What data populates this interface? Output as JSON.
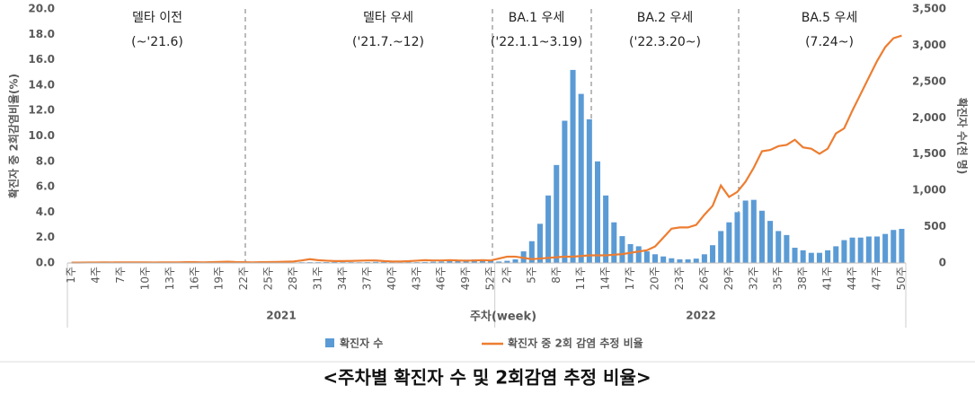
{
  "chart_data": {
    "type": "bar_line",
    "annotations": [
      {
        "text": "델타 이전",
        "sub": "(~'21.6)"
      },
      {
        "text": "델타 우세",
        "sub": "('21.7.~12)"
      },
      {
        "text": "BA.1 우세",
        "sub": "('22.1.1~3.19)"
      },
      {
        "text": "BA.2 우세",
        "sub": "('22.3.20~)"
      },
      {
        "text": "BA.5 우세",
        "sub": "(7.24~)"
      }
    ],
    "groups": [
      "2021",
      "2022"
    ],
    "xlabel": "주차(week)",
    "ylabel": "확진자 중 2회감염비율(%)",
    "y2label": "확진자 수(천 명)",
    "caption": "<주차별 확진자 수 및 2회감염 추정 비율>",
    "categories": [
      "1주",
      null,
      null,
      "4주",
      null,
      null,
      "7주",
      null,
      null,
      "10주",
      null,
      null,
      "13주",
      null,
      null,
      "16주",
      null,
      null,
      "19주",
      null,
      null,
      "22주",
      null,
      null,
      "25주",
      null,
      null,
      "28주",
      null,
      null,
      "31주",
      null,
      null,
      "34주",
      null,
      null,
      "37주",
      null,
      null,
      "40주",
      null,
      null,
      "43주",
      null,
      null,
      "46주",
      null,
      null,
      "49주",
      null,
      null,
      "52주",
      null,
      "2주",
      null,
      null,
      "5주",
      null,
      null,
      "8주",
      null,
      null,
      "11주",
      null,
      null,
      "14주",
      null,
      null,
      "17주",
      null,
      null,
      "20주",
      null,
      null,
      "23주",
      null,
      null,
      "26주",
      null,
      null,
      "29주",
      null,
      null,
      "32주",
      null,
      null,
      "35주",
      null,
      null,
      "38주",
      null,
      null,
      "41주",
      null,
      null,
      "44주",
      null,
      null,
      "47주",
      null,
      null,
      "50주"
    ],
    "ylim": [
      0,
      20
    ],
    "yticks": [
      {
        "value": 0,
        "label": "0.0"
      },
      {
        "value": 2,
        "label": "2.0"
      },
      {
        "value": 4,
        "label": "4.0"
      },
      {
        "value": 6,
        "label": "6.0"
      },
      {
        "value": 8,
        "label": "8.0"
      },
      {
        "value": 10,
        "label": "10.0"
      },
      {
        "value": 12,
        "label": "12.0"
      },
      {
        "value": 14,
        "label": "14.0"
      },
      {
        "value": 16,
        "label": "16.0"
      },
      {
        "value": 18,
        "label": "18.0"
      },
      {
        "value": 20,
        "label": "20.0"
      }
    ],
    "y2lim": [
      0,
      3500
    ],
    "y2ticks": [
      0,
      500,
      {
        "value": 1000,
        "label": "1,000"
      },
      {
        "value": 1500,
        "label": "1,500"
      },
      {
        "value": 2000,
        "label": "2,000"
      },
      {
        "value": 2500,
        "label": "2,500"
      },
      {
        "value": 3000,
        "label": "3,000"
      },
      {
        "value": 3500,
        "label": "3,500"
      }
    ],
    "series": [
      {
        "name": "확진자 수",
        "type": "bar",
        "axis": "y2",
        "color": "#5b9bd5",
        "values": [
          5,
          4,
          3,
          3,
          3,
          3,
          3,
          3,
          3,
          3,
          3,
          3,
          4,
          4,
          4,
          4,
          4,
          4,
          4,
          4,
          4,
          4,
          4,
          3,
          3,
          4,
          5,
          8,
          10,
          11,
          11,
          12,
          12,
          11,
          11,
          10,
          12,
          15,
          14,
          12,
          10,
          11,
          11,
          13,
          17,
          20,
          25,
          35,
          45,
          48,
          42,
          38,
          20,
          30,
          50,
          160,
          300,
          540,
          930,
          1350,
          1960,
          2660,
          2330,
          1980,
          1400,
          930,
          560,
          370,
          260,
          230,
          160,
          120,
          90,
          65,
          50,
          50,
          60,
          120,
          245,
          440,
          560,
          700,
          860,
          870,
          720,
          580,
          440,
          385,
          210,
          175,
          140,
          140,
          175,
          230,
          315,
          350,
          350,
          365,
          365,
          400,
          455,
          470
        ]
      },
      {
        "name": "확진자 중 2회 감염 추정 비율",
        "type": "line",
        "axis": "y",
        "color": "#ed7d31",
        "values": [
          0.03,
          0.03,
          0.04,
          0.04,
          0.05,
          0.04,
          0.05,
          0.05,
          0.05,
          0.05,
          0.04,
          0.05,
          0.05,
          0.05,
          0.06,
          0.06,
          0.05,
          0.06,
          0.08,
          0.1,
          0.07,
          0.06,
          0.05,
          0.06,
          0.07,
          0.08,
          0.1,
          0.12,
          0.2,
          0.3,
          0.22,
          0.18,
          0.15,
          0.15,
          0.16,
          0.18,
          0.2,
          0.2,
          0.15,
          0.12,
          0.12,
          0.14,
          0.18,
          0.22,
          0.2,
          0.2,
          0.22,
          0.2,
          0.18,
          0.2,
          0.22,
          0.2,
          0.35,
          0.5,
          0.5,
          0.4,
          0.3,
          0.35,
          0.4,
          0.45,
          0.5,
          0.5,
          0.55,
          0.6,
          0.6,
          0.6,
          0.65,
          0.7,
          0.8,
          0.9,
          1.0,
          1.3,
          2.0,
          2.7,
          2.8,
          2.8,
          3.0,
          3.8,
          4.5,
          6.1,
          5.2,
          5.6,
          6.4,
          7.5,
          8.8,
          8.9,
          9.2,
          9.3,
          9.7,
          9.1,
          9.0,
          8.6,
          9.0,
          10.2,
          10.6,
          12.0,
          13.3,
          14.6,
          15.9,
          17.0,
          17.7,
          17.9
        ]
      }
    ]
  }
}
